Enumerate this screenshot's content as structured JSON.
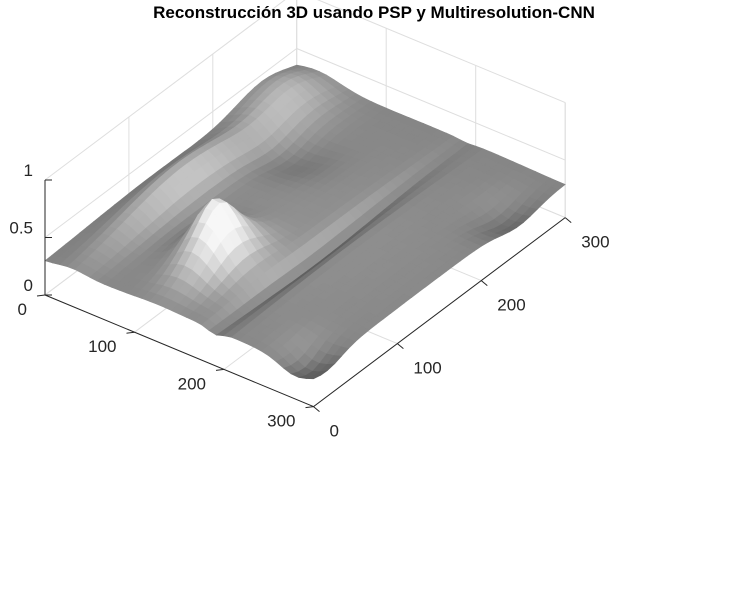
{
  "chart_data": {
    "type": "surface",
    "title": "Reconstrucción 3D usando PSP y Multiresolution-CNN",
    "xlabel": "",
    "ylabel": "",
    "zlabel": "",
    "x_ticks": [
      "0",
      "100",
      "200",
      "300"
    ],
    "y_ticks": [
      "0",
      "100",
      "200",
      "300"
    ],
    "z_ticks": [
      "0",
      "0.5",
      "1"
    ],
    "xlim": [
      0,
      300
    ],
    "ylim": [
      0,
      300
    ],
    "zlim": [
      0,
      1
    ],
    "grid": true,
    "colormap": "gray",
    "grid_color": "#dedede",
    "axis_color": "#262626"
  }
}
